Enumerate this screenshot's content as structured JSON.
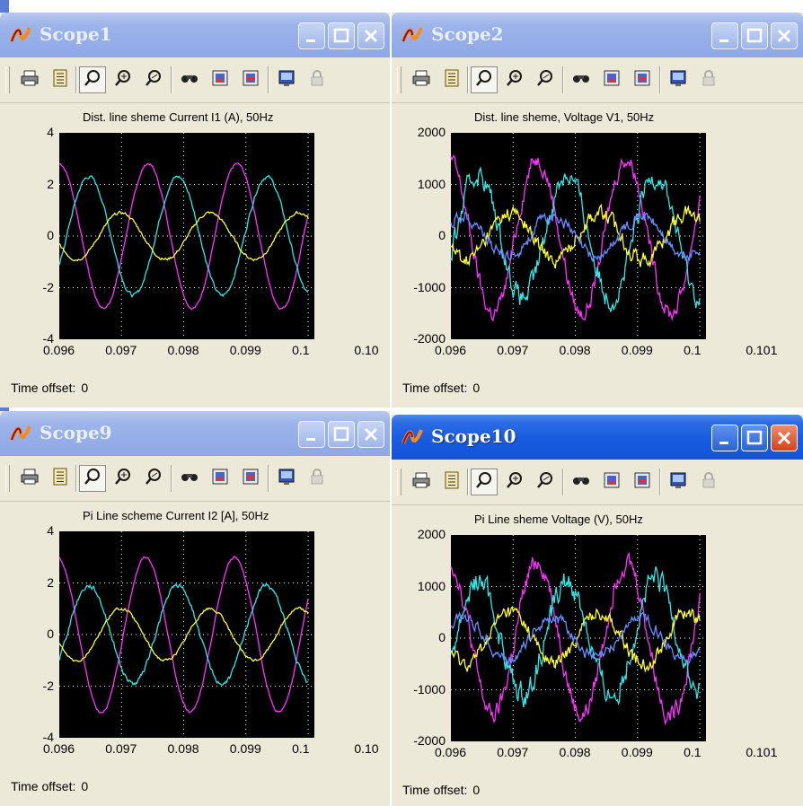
{
  "windows": [
    {
      "id": "scope1",
      "title": "Scope1",
      "active": false,
      "plot_title": "Dist. line sheme Current I1 (A), 50Hz",
      "y_ticks": [
        "4",
        "2",
        "0",
        "-2",
        "-4"
      ],
      "x_ticks": [
        "0.096",
        "0.097",
        "0.098",
        "0.099",
        "0.1",
        "0.10"
      ],
      "offset_label": "Time offset:",
      "offset_value": "0",
      "chart_data": {
        "type": "line",
        "xlabel": "",
        "ylabel": "",
        "xlim": [
          0.096,
          0.101
        ],
        "ylim": [
          -4,
          4
        ],
        "grid": true,
        "series": [
          {
            "color": "#ff33ff",
            "amplitude": 2.8,
            "phase_deg": 90,
            "noise": 0.05
          },
          {
            "color": "#33e6e6",
            "amplitude": 2.3,
            "phase_deg": -30,
            "noise": 0.08
          },
          {
            "color": "#ffff33",
            "amplitude": 0.9,
            "phase_deg": 200,
            "noise": 0.06
          }
        ]
      }
    },
    {
      "id": "scope2",
      "title": "Scope2",
      "active": false,
      "plot_title": "Dist. line sheme, Voltage V1, 50Hz",
      "y_ticks": [
        "2000",
        "1000",
        "0",
        "-1000",
        "-2000"
      ],
      "x_ticks": [
        "0.096",
        "0.097",
        "0.098",
        "0.099",
        "0.1",
        "0.101"
      ],
      "offset_label": "Time offset:",
      "offset_value": "0",
      "chart_data": {
        "type": "line",
        "xlabel": "",
        "ylabel": "",
        "xlim": [
          0.096,
          0.101
        ],
        "ylim": [
          -2000,
          2000
        ],
        "grid": true,
        "series": [
          {
            "color": "#ff33ff",
            "amplitude": 1500,
            "phase_deg": 100,
            "noise": 170
          },
          {
            "color": "#33e6e6",
            "amplitude": 1200,
            "phase_deg": -20,
            "noise": 220
          },
          {
            "color": "#ffff33",
            "amplitude": 450,
            "phase_deg": 210,
            "noise": 160
          },
          {
            "color": "#6a8cff",
            "amplitude": 400,
            "phase_deg": 40,
            "noise": 120
          }
        ]
      }
    },
    {
      "id": "scope9",
      "title": "Scope9",
      "active": false,
      "plot_title": "Pi Line scheme Current I2 [A], 50Hz",
      "y_ticks": [
        "4",
        "2",
        "0",
        "-2",
        "-4"
      ],
      "x_ticks": [
        "0.096",
        "0.097",
        "0.098",
        "0.099",
        "0.1",
        "0.10"
      ],
      "offset_label": "Time offset:",
      "offset_value": "0",
      "chart_data": {
        "type": "line",
        "xlabel": "",
        "ylabel": "",
        "xlim": [
          0.096,
          0.101
        ],
        "ylim": [
          -4,
          4
        ],
        "grid": true,
        "series": [
          {
            "color": "#ff33ff",
            "amplitude": 3.0,
            "phase_deg": 100,
            "noise": 0.05
          },
          {
            "color": "#33e6e6",
            "amplitude": 1.9,
            "phase_deg": -30,
            "noise": 0.1
          },
          {
            "color": "#ffff33",
            "amplitude": 1.0,
            "phase_deg": 200,
            "noise": 0.06
          }
        ]
      }
    },
    {
      "id": "scope10",
      "title": "Scope10",
      "active": true,
      "plot_title": "Pi Line sheme Voltage (V), 50Hz",
      "y_ticks": [
        "2000",
        "1000",
        "0",
        "-1000",
        "-2000"
      ],
      "x_ticks": [
        "0.096",
        "0.097",
        "0.098",
        "0.099",
        "0.1",
        "0.101"
      ],
      "offset_label": "Time offset:",
      "offset_value": "0",
      "chart_data": {
        "type": "line",
        "xlabel": "",
        "ylabel": "",
        "xlim": [
          0.096,
          0.101
        ],
        "ylim": [
          -2000,
          2000
        ],
        "grid": true,
        "series": [
          {
            "color": "#ff33ff",
            "amplitude": 1500,
            "phase_deg": 100,
            "noise": 200
          },
          {
            "color": "#33e6e6",
            "amplitude": 1100,
            "phase_deg": -20,
            "noise": 250
          },
          {
            "color": "#ffff33",
            "amplitude": 500,
            "phase_deg": 210,
            "noise": 150
          },
          {
            "color": "#6a8cff",
            "amplitude": 400,
            "phase_deg": 40,
            "noise": 120
          }
        ]
      }
    }
  ],
  "toolbar_icons": [
    "print-icon",
    "parameters-icon",
    "zoom-icon",
    "zoom-x-icon",
    "zoom-y-icon",
    "autoscale-icon",
    "save-axes-icon",
    "restore-axes-icon",
    "floating-scope-icon",
    "lock-icon"
  ]
}
